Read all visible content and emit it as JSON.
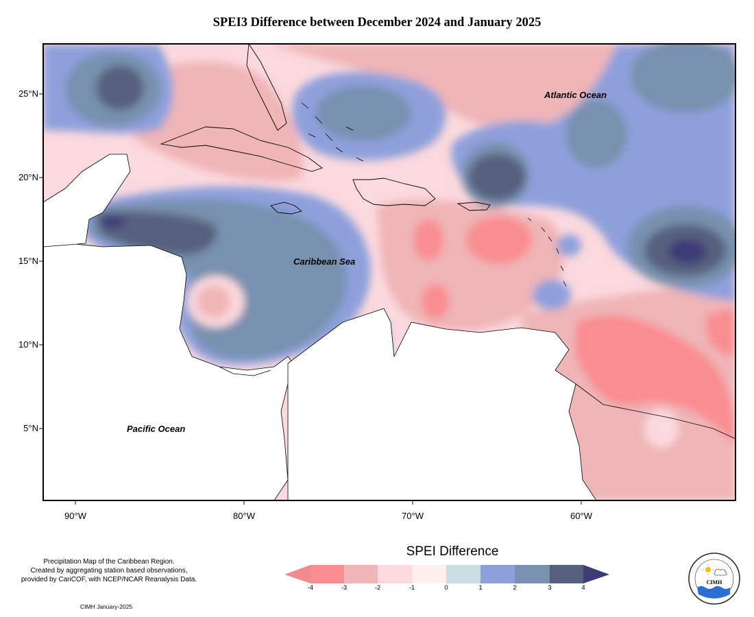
{
  "map": {
    "title": "SPEI3 Difference between December 2024 and January 2025",
    "lat_labels": [
      "25°N",
      "20°N",
      "15°N",
      "10°N",
      "5°N"
    ],
    "lon_labels": [
      "90°W",
      "80°W",
      "70°W",
      "60°W"
    ],
    "ocean_labels": {
      "atlantic": "Atlantic Ocean",
      "caribbean": "Caribbean Sea",
      "pacific": "Pacific Ocean"
    },
    "colors": {
      "neg4": "#f28a8e",
      "neg3": "#f98d91",
      "neg2": "#efb5b7",
      "neg1": "#fbd9de",
      "zero_neg": "#fff0f0",
      "zero_pos": "#c9dde3",
      "pos1": "#8ea0dc",
      "pos2": "#7891ae",
      "pos3": "#56607d",
      "pos4": "#3d3b78"
    }
  },
  "legend": {
    "title": "SPEI Difference",
    "ticks": [
      "-4",
      "-3",
      "-2",
      "-1",
      "0",
      "1",
      "2",
      "3",
      "4"
    ]
  },
  "footer": {
    "note_lines": [
      "Precipitation Map of the Caribbean Region.",
      "Created by aggregating station based observations,",
      "provided by CariCOF, with NCEP/NCAR Reanalysis Data."
    ],
    "credit": "CIMH January-2025",
    "logo_text": "CIMH"
  }
}
